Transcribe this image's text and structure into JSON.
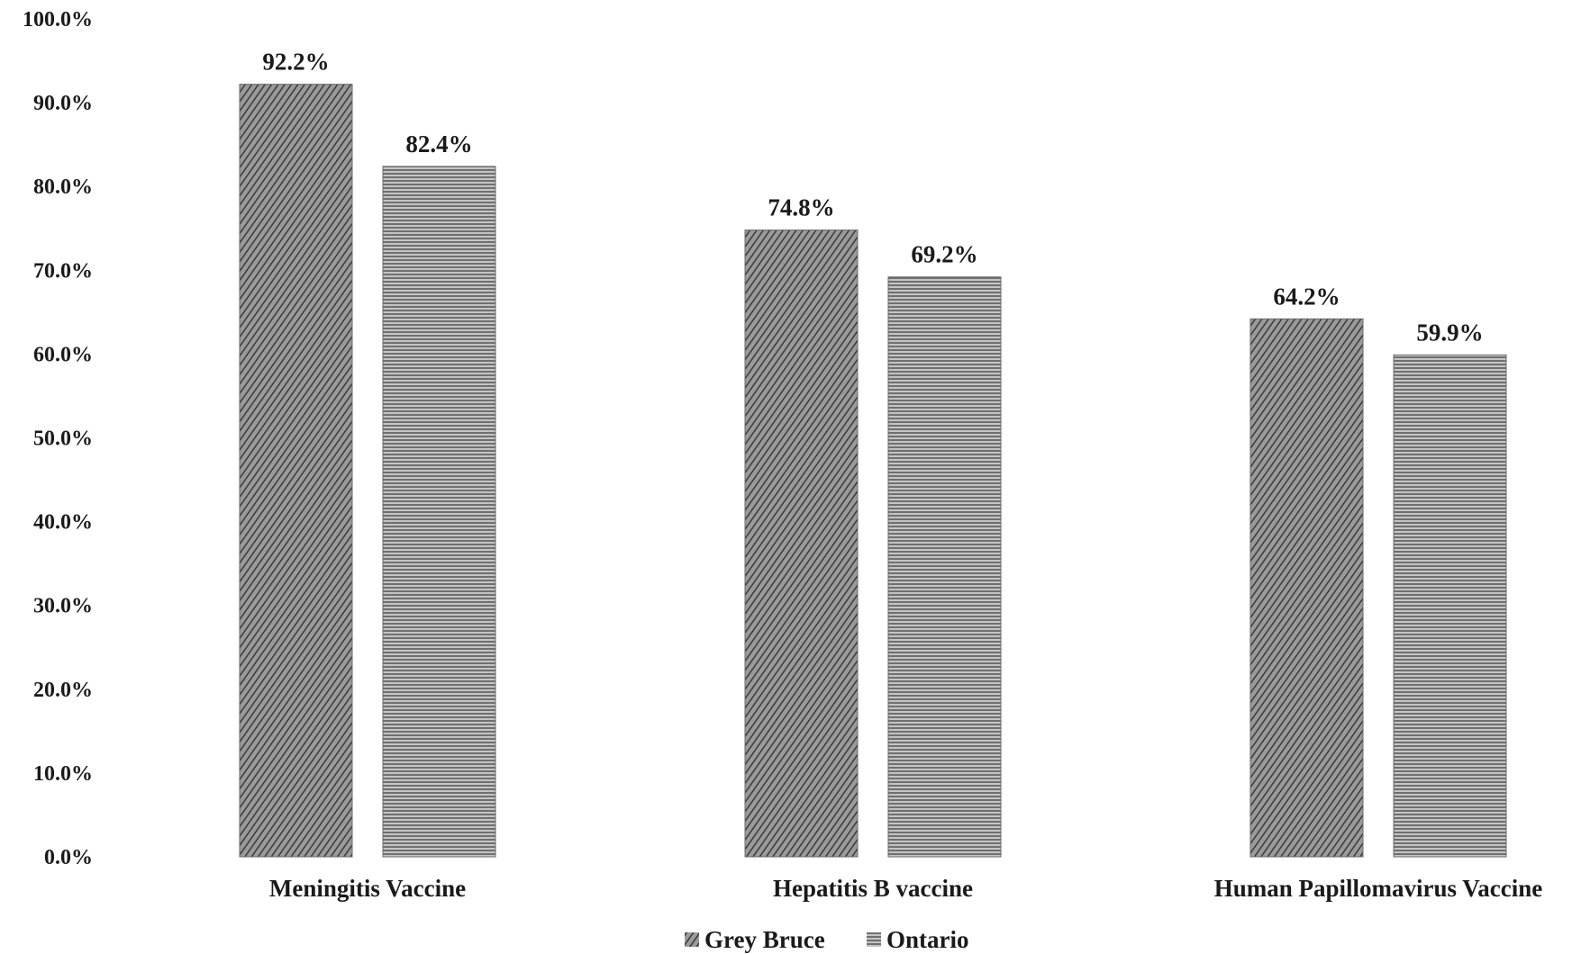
{
  "chart_data": {
    "type": "bar",
    "categories": [
      "Meningitis Vaccine",
      "Hepatitis B vaccine",
      "Human Papillomavirus Vaccine"
    ],
    "series": [
      {
        "name": "Grey Bruce",
        "values": [
          92.2,
          74.8,
          64.2
        ],
        "labels": [
          "92.2%",
          "74.8%",
          "64.2%"
        ],
        "pattern": "dense-diagonal"
      },
      {
        "name": "Ontario",
        "values": [
          82.4,
          69.2,
          59.9
        ],
        "labels": [
          "82.4%",
          "69.2%",
          "59.9%"
        ],
        "pattern": "horizontal-lines"
      }
    ],
    "yticks": [
      0,
      10,
      20,
      30,
      40,
      50,
      60,
      70,
      80,
      90,
      100
    ],
    "ytick_labels": [
      "0.0%",
      "10.0%",
      "20.0%",
      "30.0%",
      "40.0%",
      "50.0%",
      "60.0%",
      "70.0%",
      "80.0%",
      "90.0%",
      "100.0%"
    ],
    "ylim": [
      0,
      100
    ],
    "grid": false,
    "legend_position": "bottom-center",
    "colors": {
      "bar_fill": "#8c8c8c",
      "bar_line": "#3a3a3a",
      "text": "#1a1a1a"
    }
  }
}
